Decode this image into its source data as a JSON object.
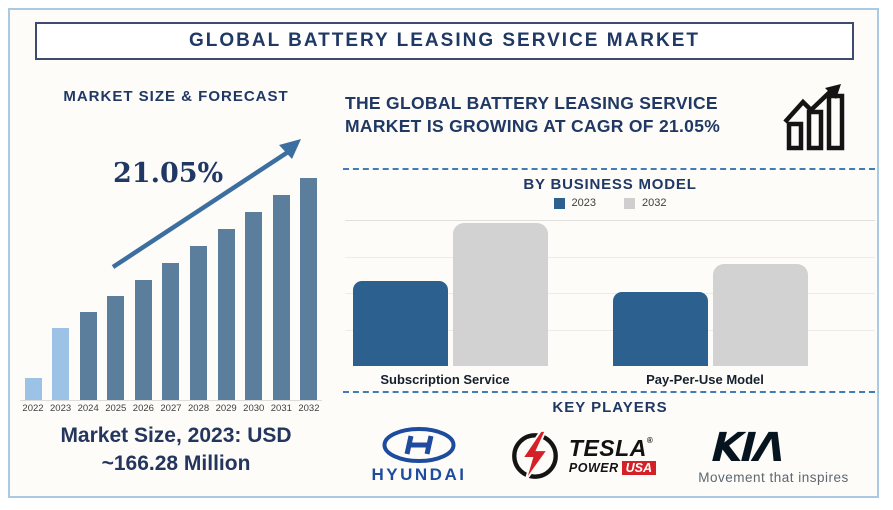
{
  "page": {
    "title": "GLOBAL BATTERY LEASING SERVICE MARKET",
    "accent_navy": "#203864",
    "frame_border_blue": "#aac9e2"
  },
  "left_panel": {
    "chart_title": "MARKET SIZE & FORECAST",
    "cagr_annotation": "21.05%",
    "market_size_note_line1": "Market Size, 2023: USD",
    "market_size_note_line2": "~166.28 Million"
  },
  "right_panel": {
    "headline": "THE GLOBAL BATTERY LEASING SERVICE MARKET IS GROWING AT CAGR OF 21.05%",
    "business_model": {
      "title": "BY BUSINESS MODEL",
      "legend": [
        {
          "label": "2023",
          "color": "#2b608f"
        },
        {
          "label": "2032",
          "color": "#cfcfcf"
        }
      ]
    },
    "key_players": {
      "title": "KEY PLAYERS",
      "hyundai": {
        "name": "Hyundai",
        "wordmark": "HYUNDAI",
        "brand_color": "#1e4b9e"
      },
      "tesla_power_usa": {
        "name": "Tesla Power USA",
        "wordmark": "TESLA",
        "wordmark2": "POWER",
        "badge": "USA",
        "reg_mark": "®",
        "brand_red": "#d42027"
      },
      "kia": {
        "name": "Kia",
        "wordmark": "KIΛ",
        "tagline": "Movement that inspires",
        "brand_color": "#05141f"
      }
    }
  },
  "chart_data": [
    {
      "type": "bar",
      "title": "MARKET SIZE & FORECAST",
      "categories": [
        "2022",
        "2023",
        "2024",
        "2025",
        "2026",
        "2027",
        "2028",
        "2029",
        "2030",
        "2031",
        "2032"
      ],
      "values": [
        22,
        72,
        88,
        104,
        120,
        137,
        154,
        171,
        188,
        205,
        222
      ],
      "value_unit": "relative bar height, px (axis unlabeled)",
      "known_point": "Market Size 2023 = USD ~166.28 Million",
      "annotation": "21.05% CAGR trend arrow",
      "colors": {
        "default": "#5b7e9d",
        "highlight": "#9cc2e5"
      },
      "highlight_categories": [
        "2022",
        "2023"
      ],
      "xlabel": "",
      "ylabel": "",
      "grid": false,
      "legend": "none"
    },
    {
      "type": "bar",
      "title": "BY BUSINESS MODEL",
      "categories": [
        "Subscription Service",
        "Pay-Per-Use Model"
      ],
      "series": [
        {
          "name": "2023",
          "values": [
            85,
            74
          ],
          "color": "#2b608f"
        },
        {
          "name": "2032",
          "values": [
            143,
            102
          ],
          "color": "#d2d2d2"
        }
      ],
      "value_unit": "relative bar height, px (axis unlabeled)",
      "grid": true,
      "legend_position": "top"
    }
  ]
}
